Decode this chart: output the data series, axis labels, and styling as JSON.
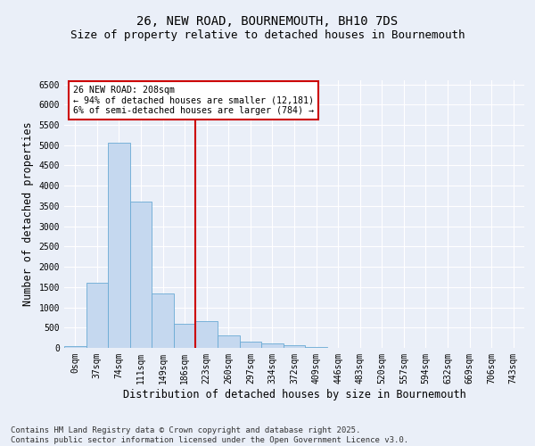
{
  "title1": "26, NEW ROAD, BOURNEMOUTH, BH10 7DS",
  "title2": "Size of property relative to detached houses in Bournemouth",
  "xlabel": "Distribution of detached houses by size in Bournemouth",
  "ylabel": "Number of detached properties",
  "footer1": "Contains HM Land Registry data © Crown copyright and database right 2025.",
  "footer2": "Contains public sector information licensed under the Open Government Licence v3.0.",
  "categories": [
    "0sqm",
    "37sqm",
    "74sqm",
    "111sqm",
    "149sqm",
    "186sqm",
    "223sqm",
    "260sqm",
    "297sqm",
    "334sqm",
    "372sqm",
    "409sqm",
    "446sqm",
    "483sqm",
    "520sqm",
    "557sqm",
    "594sqm",
    "632sqm",
    "669sqm",
    "706sqm",
    "743sqm"
  ],
  "values": [
    50,
    1600,
    5050,
    3600,
    1350,
    600,
    650,
    310,
    160,
    120,
    70,
    20,
    10,
    0,
    0,
    0,
    0,
    0,
    0,
    0,
    0
  ],
  "bar_color": "#c5d8ef",
  "bar_edge_color": "#6aaad4",
  "vline_color": "#cc0000",
  "annotation_text": "26 NEW ROAD: 208sqm\n← 94% of detached houses are smaller (12,181)\n6% of semi-detached houses are larger (784) →",
  "annotation_box_color": "#ffffff",
  "annotation_box_edge": "#cc0000",
  "ylim": [
    0,
    6600
  ],
  "yticks": [
    0,
    500,
    1000,
    1500,
    2000,
    2500,
    3000,
    3500,
    4000,
    4500,
    5000,
    5500,
    6000,
    6500
  ],
  "background_color": "#eaeff8",
  "grid_color": "#ffffff",
  "title_fontsize": 10,
  "subtitle_fontsize": 9,
  "tick_fontsize": 7,
  "label_fontsize": 8.5,
  "footer_fontsize": 6.5
}
